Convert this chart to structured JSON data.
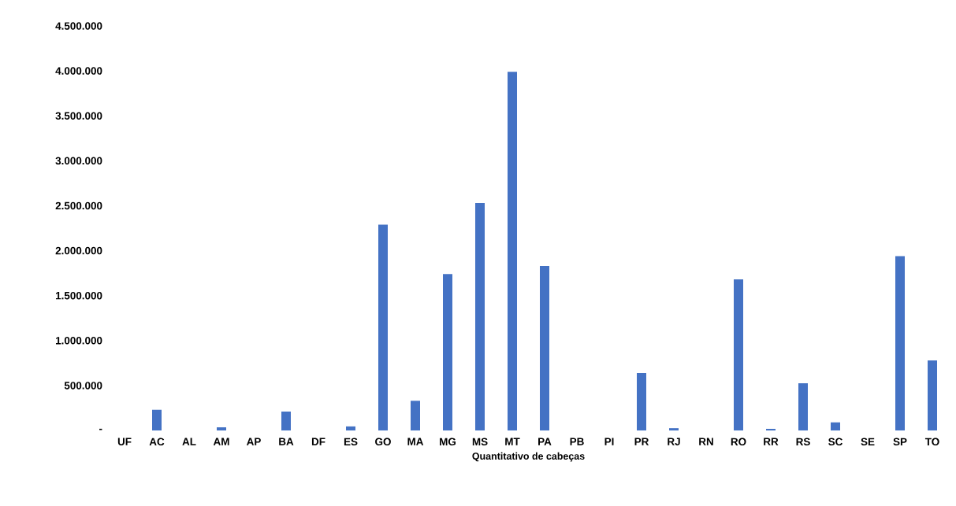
{
  "chart_data": {
    "type": "bar",
    "xlabel": "Quantitativo de cabeças",
    "categories": [
      "UF",
      "AC",
      "AL",
      "AM",
      "AP",
      "BA",
      "DF",
      "ES",
      "GO",
      "MA",
      "MG",
      "MS",
      "MT",
      "PA",
      "PB",
      "PI",
      "PR",
      "RJ",
      "RN",
      "RO",
      "RR",
      "RS",
      "SC",
      "SE",
      "SP",
      "TO"
    ],
    "values": [
      0,
      230000,
      0,
      35000,
      0,
      210000,
      0,
      45000,
      2290000,
      330000,
      1740000,
      2530000,
      3990000,
      1830000,
      0,
      0,
      640000,
      25000,
      0,
      1680000,
      18000,
      525000,
      90000,
      0,
      1940000,
      780000
    ],
    "color": "#4472c4",
    "ylim": [
      0,
      4500000
    ],
    "yticks": [
      {
        "value": 0,
        "label": "-"
      },
      {
        "value": 500000,
        "label": "500.000"
      },
      {
        "value": 1000000,
        "label": "1.000.000"
      },
      {
        "value": 1500000,
        "label": "1.500.000"
      },
      {
        "value": 2000000,
        "label": "2.000.000"
      },
      {
        "value": 2500000,
        "label": "2.500.000"
      },
      {
        "value": 3000000,
        "label": "3.000.000"
      },
      {
        "value": 3500000,
        "label": "3.500.000"
      },
      {
        "value": 4000000,
        "label": "4.000.000"
      },
      {
        "value": 4500000,
        "label": "4.500.000"
      }
    ]
  }
}
